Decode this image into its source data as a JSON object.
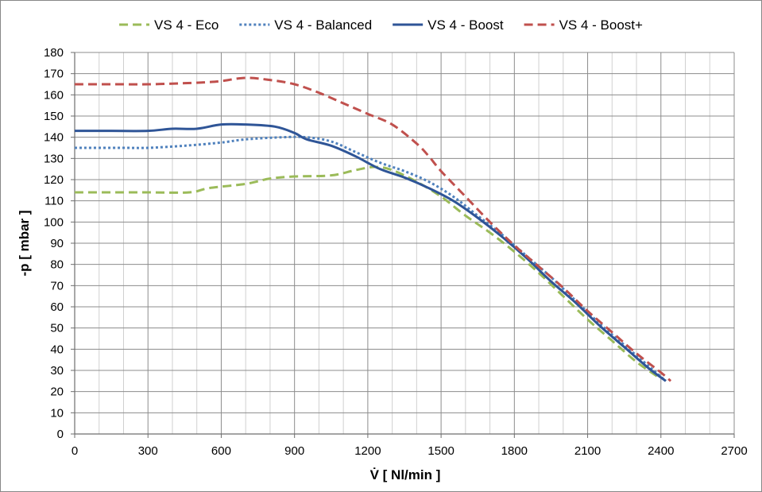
{
  "chart_data": {
    "type": "line",
    "title": "",
    "xlabel": "V̇ [ Nl/min ]",
    "ylabel": "-p [ mbar ]",
    "xlim": [
      0,
      2700
    ],
    "ylim": [
      0,
      180
    ],
    "x_major_ticks": [
      0,
      300,
      600,
      900,
      1200,
      1500,
      1800,
      2100,
      2400,
      2700
    ],
    "y_major_ticks": [
      0,
      10,
      20,
      30,
      40,
      50,
      60,
      70,
      80,
      90,
      100,
      110,
      120,
      130,
      140,
      150,
      160,
      170,
      180
    ],
    "x_minor_step": 100,
    "grid": true,
    "legend_position": "top",
    "series": [
      {
        "name": "VS 4 - Eco",
        "color": "#9BBB59",
        "dash": "dashed",
        "points": [
          [
            0,
            114
          ],
          [
            150,
            114
          ],
          [
            300,
            114
          ],
          [
            470,
            114
          ],
          [
            550,
            116
          ],
          [
            700,
            118
          ],
          [
            800,
            120.5
          ],
          [
            900,
            121.5
          ],
          [
            1050,
            122
          ],
          [
            1150,
            124.5
          ],
          [
            1230,
            126
          ],
          [
            1300,
            124.5
          ],
          [
            1400,
            119
          ],
          [
            1500,
            112
          ],
          [
            1600,
            103
          ],
          [
            1700,
            95
          ],
          [
            1800,
            86
          ],
          [
            1900,
            76
          ],
          [
            2000,
            65
          ],
          [
            2100,
            54
          ],
          [
            2200,
            44
          ],
          [
            2300,
            34
          ],
          [
            2400,
            26
          ]
        ]
      },
      {
        "name": "VS 4 - Balanced",
        "color": "#4F81BD",
        "dash": "dotted",
        "points": [
          [
            0,
            135
          ],
          [
            200,
            135
          ],
          [
            300,
            135
          ],
          [
            450,
            136
          ],
          [
            600,
            137.5
          ],
          [
            700,
            139
          ],
          [
            850,
            140
          ],
          [
            950,
            140
          ],
          [
            1050,
            138
          ],
          [
            1150,
            133
          ],
          [
            1250,
            128
          ],
          [
            1350,
            124
          ],
          [
            1450,
            119
          ],
          [
            1550,
            112
          ],
          [
            1650,
            103
          ],
          [
            1750,
            94
          ],
          [
            1850,
            84
          ],
          [
            1950,
            74
          ],
          [
            2050,
            63
          ],
          [
            2150,
            52
          ],
          [
            2250,
            42
          ],
          [
            2350,
            32
          ],
          [
            2420,
            25
          ]
        ]
      },
      {
        "name": "VS 4 - Boost",
        "color": "#2F5597",
        "dash": "solid",
        "points": [
          [
            0,
            143
          ],
          [
            150,
            143
          ],
          [
            300,
            143
          ],
          [
            400,
            144
          ],
          [
            500,
            144
          ],
          [
            600,
            146
          ],
          [
            700,
            146
          ],
          [
            820,
            145
          ],
          [
            900,
            142
          ],
          [
            950,
            139
          ],
          [
            1050,
            136
          ],
          [
            1150,
            131
          ],
          [
            1250,
            125
          ],
          [
            1350,
            121
          ],
          [
            1450,
            116
          ],
          [
            1550,
            110
          ],
          [
            1650,
            102
          ],
          [
            1750,
            93
          ],
          [
            1850,
            83
          ],
          [
            1950,
            72
          ],
          [
            2050,
            62
          ],
          [
            2150,
            51
          ],
          [
            2250,
            41
          ],
          [
            2350,
            31
          ],
          [
            2420,
            25
          ]
        ]
      },
      {
        "name": "VS 4 - Boost+",
        "color": "#C0504D",
        "dash": "dashed",
        "points": [
          [
            0,
            165
          ],
          [
            150,
            165
          ],
          [
            300,
            165
          ],
          [
            450,
            165.5
          ],
          [
            550,
            166
          ],
          [
            600,
            166.5
          ],
          [
            700,
            168
          ],
          [
            800,
            167
          ],
          [
            900,
            165
          ],
          [
            1000,
            161
          ],
          [
            1100,
            156
          ],
          [
            1200,
            151
          ],
          [
            1300,
            146
          ],
          [
            1400,
            137
          ],
          [
            1450,
            131
          ],
          [
            1500,
            124
          ],
          [
            1600,
            112
          ],
          [
            1700,
            100
          ],
          [
            1800,
            89
          ],
          [
            1900,
            79
          ],
          [
            2000,
            69
          ],
          [
            2100,
            58
          ],
          [
            2200,
            48
          ],
          [
            2300,
            38
          ],
          [
            2400,
            29
          ],
          [
            2440,
            25
          ]
        ]
      }
    ]
  }
}
